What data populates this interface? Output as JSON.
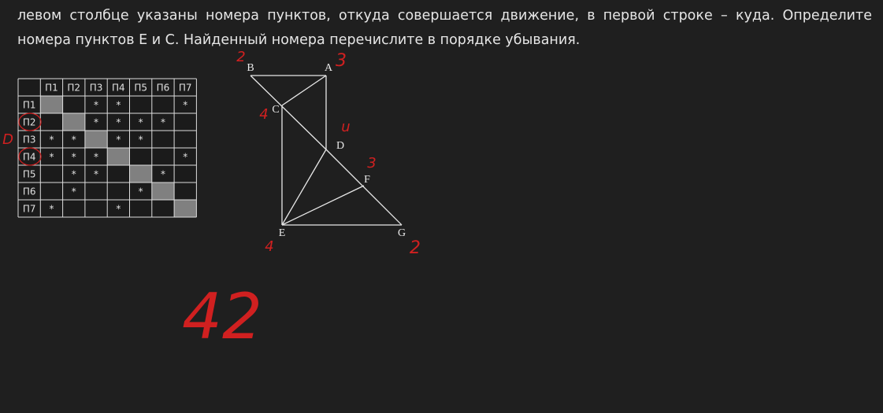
{
  "text": {
    "lines": [
      "левом столбце указаны номера пунктов, откуда совершается движение, в первой строке – куда. Определите",
      "номера пунктов E и C. Найденный номера перечислите в порядке убывания."
    ]
  },
  "table": {
    "header": [
      "П1",
      "П2",
      "П3",
      "П4",
      "П5",
      "П6",
      "П7"
    ],
    "rows": [
      {
        "label": "П1",
        "cells": {
          "3": "*",
          "4": "*",
          "7": "*"
        }
      },
      {
        "label": "П2",
        "cells": {
          "3": "*",
          "4": "*",
          "5": "*",
          "6": "*"
        }
      },
      {
        "label": "П3",
        "cells": {
          "1": "*",
          "2": "*",
          "4": "*",
          "5": "*"
        }
      },
      {
        "label": "П4",
        "cells": {
          "1": "*",
          "2": "*",
          "3": "*",
          "7": "*"
        }
      },
      {
        "label": "П5",
        "cells": {
          "2": "*",
          "3": "*",
          "6": "*"
        }
      },
      {
        "label": "П6",
        "cells": {
          "2": "*",
          "5": "*"
        }
      },
      {
        "label": "П7",
        "cells": {
          "1": "*",
          "4": "*"
        }
      }
    ]
  },
  "graph": {
    "nodes": [
      "B",
      "A",
      "C",
      "D",
      "F",
      "E",
      "G"
    ]
  },
  "annotations": [
    "2",
    "3",
    "4",
    "u",
    "3",
    "4",
    "2",
    "D",
    "42"
  ]
}
